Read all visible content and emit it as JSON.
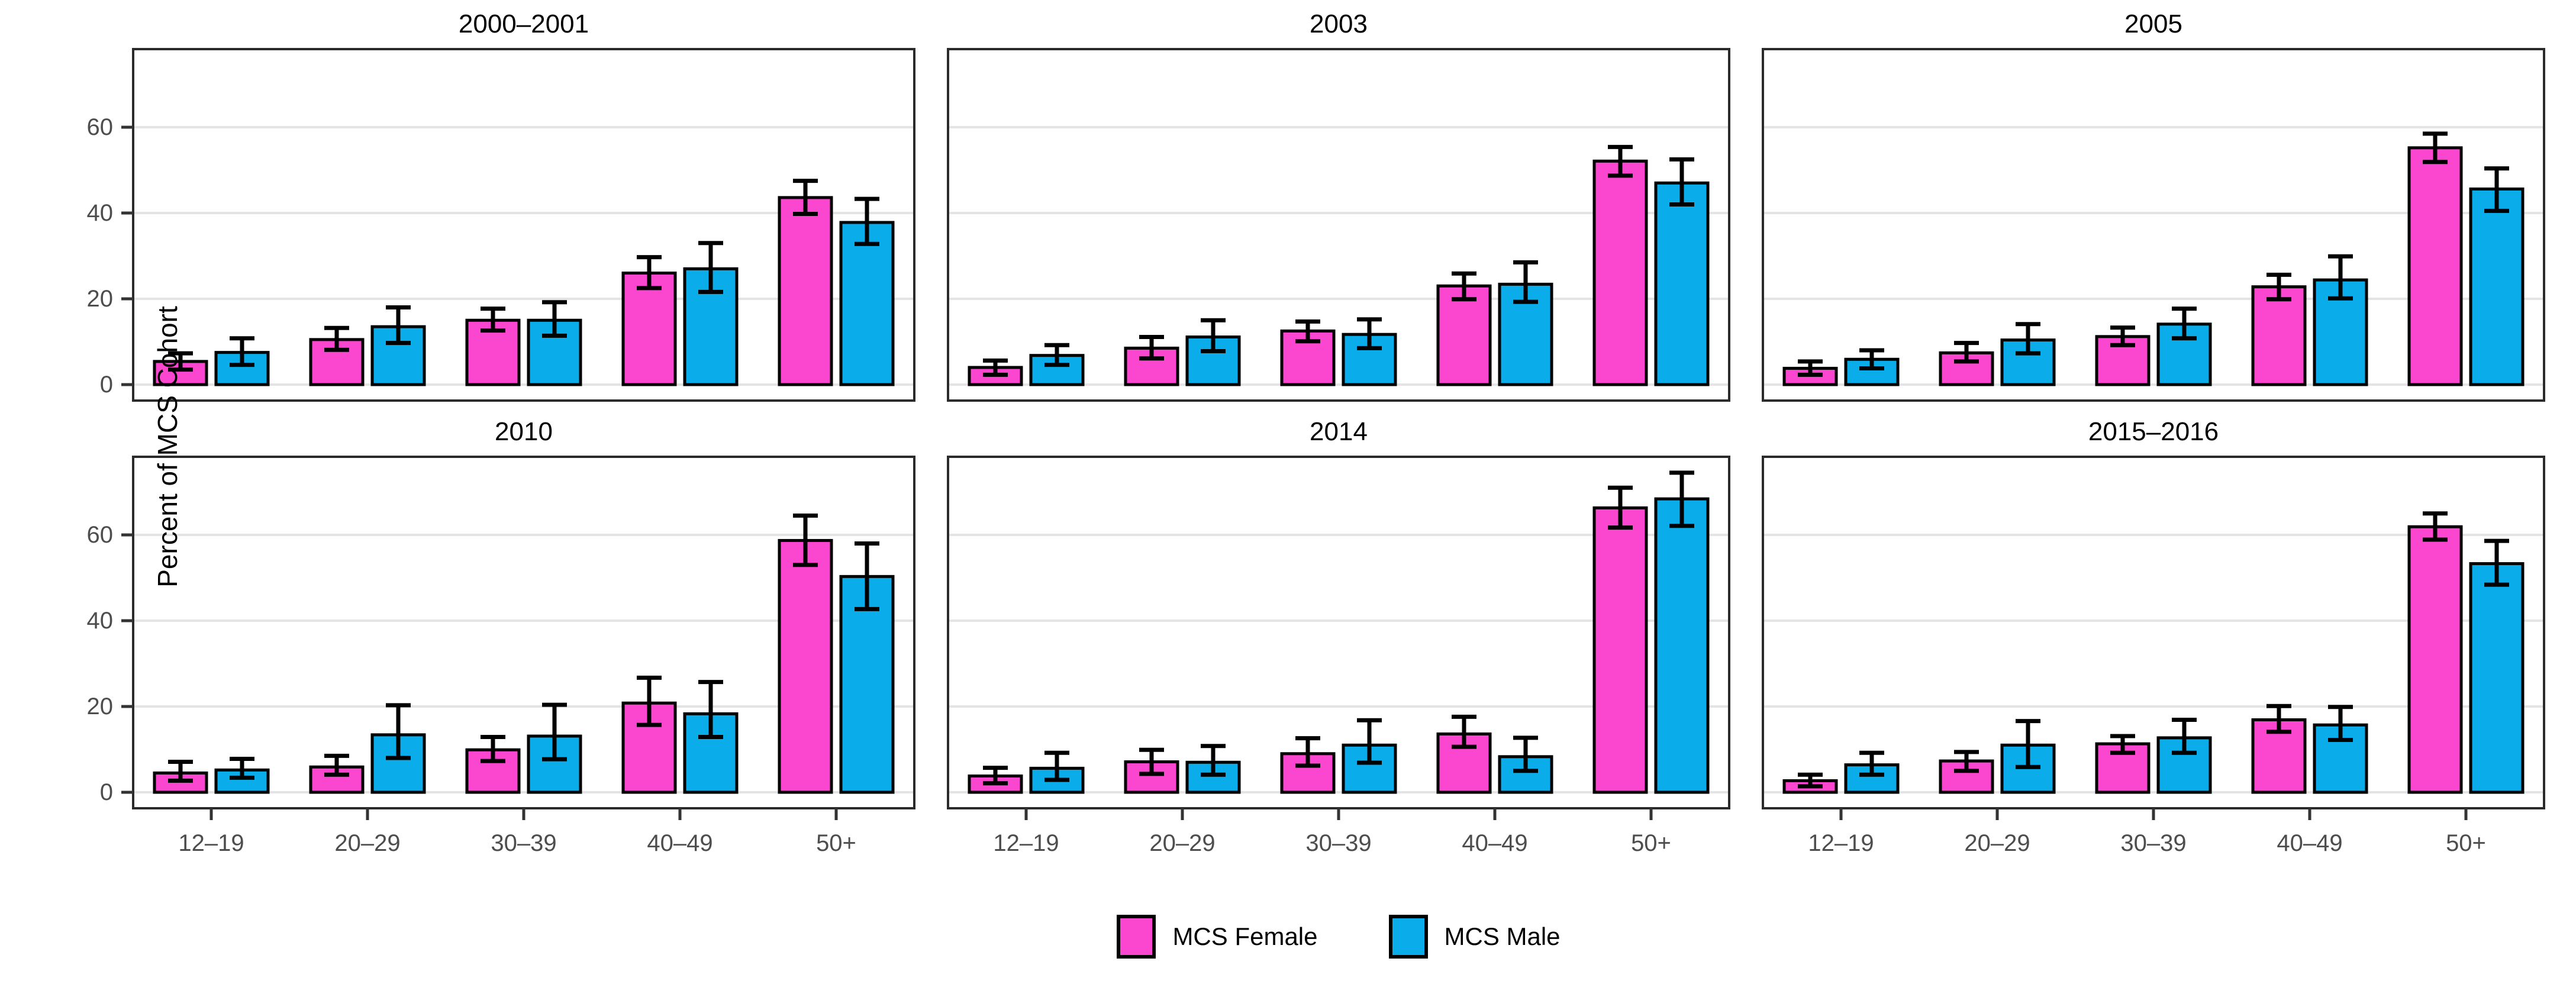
{
  "figure": {
    "y_axis_title": "Percent of MCS Cohort",
    "legend": [
      {
        "label": "MCS Female",
        "color_key": "female"
      },
      {
        "label": "MCS Male",
        "color_key": "male"
      }
    ],
    "colors": {
      "female": "#FB46D0",
      "male": "#0AACEA",
      "grid": "#E4E4E4",
      "panel_border": "#2B2B2B",
      "tick_label": "#4D4D4D",
      "tick_mark": "#333333",
      "bar_outline": "#000000",
      "title_text": "#000000"
    }
  },
  "chart_data": {
    "type": "bar",
    "categories": [
      "12–19",
      "20–29",
      "30–39",
      "40–49",
      "50+"
    ],
    "y_ticks": [
      0,
      20,
      40,
      60
    ],
    "ylim": [
      -3.9,
      78.3
    ],
    "ylabel": "Percent of MCS Cohort",
    "grid": "major-horizontal-only",
    "legend_position": "bottom",
    "series_names": [
      "MCS Female",
      "MCS Male"
    ],
    "panels": [
      {
        "title": "2000–2001",
        "series": [
          {
            "name": "MCS Female",
            "values": [
              5.4,
              10.5,
              15.0,
              26.0,
              43.6
            ],
            "err_low": [
              3.5,
              8.1,
              12.6,
              22.5,
              39.8
            ],
            "err_high": [
              7.3,
              13.2,
              17.7,
              29.7,
              47.5
            ]
          },
          {
            "name": "MCS Male",
            "values": [
              7.5,
              13.5,
              15.0,
              27.0,
              37.8
            ],
            "err_low": [
              4.6,
              9.7,
              11.4,
              21.6,
              32.8
            ],
            "err_high": [
              10.8,
              18.0,
              19.2,
              33.0,
              43.3
            ]
          }
        ]
      },
      {
        "title": "2003",
        "series": [
          {
            "name": "MCS Female",
            "values": [
              4.0,
              8.5,
              12.5,
              23.0,
              52.1
            ],
            "err_low": [
              2.3,
              6.1,
              10.1,
              19.9,
              48.7
            ],
            "err_high": [
              5.6,
              11.1,
              14.7,
              25.9,
              55.4
            ]
          },
          {
            "name": "MCS Male",
            "values": [
              6.8,
              11.1,
              11.7,
              23.4,
              47.0
            ],
            "err_low": [
              4.6,
              7.8,
              8.5,
              19.3,
              42.0
            ],
            "err_high": [
              9.2,
              15.0,
              15.2,
              28.5,
              52.5
            ]
          }
        ]
      },
      {
        "title": "2005",
        "series": [
          {
            "name": "MCS Female",
            "values": [
              3.8,
              7.4,
              11.2,
              22.8,
              55.2
            ],
            "err_low": [
              2.3,
              5.4,
              9.2,
              19.9,
              51.9
            ],
            "err_high": [
              5.4,
              9.7,
              13.3,
              25.6,
              58.5
            ]
          },
          {
            "name": "MCS Male",
            "values": [
              5.9,
              10.4,
              14.1,
              24.4,
              45.6
            ],
            "err_low": [
              3.8,
              7.3,
              10.8,
              20.1,
              40.5
            ],
            "err_high": [
              8.0,
              14.1,
              17.7,
              29.9,
              50.4
            ]
          }
        ]
      },
      {
        "title": "2010",
        "series": [
          {
            "name": "MCS Female",
            "values": [
              4.5,
              5.9,
              9.9,
              20.8,
              58.7
            ],
            "err_low": [
              2.7,
              4.1,
              7.3,
              15.7,
              53.0
            ],
            "err_high": [
              7.1,
              8.5,
              12.9,
              26.7,
              64.5
            ]
          },
          {
            "name": "MCS Male",
            "values": [
              5.2,
              13.4,
              13.1,
              18.3,
              50.3
            ],
            "err_low": [
              3.4,
              8.0,
              7.7,
              12.9,
              42.7
            ],
            "err_high": [
              7.8,
              20.3,
              20.4,
              25.7,
              58.0
            ]
          }
        ]
      },
      {
        "title": "2014",
        "series": [
          {
            "name": "MCS Female",
            "values": [
              3.8,
              7.1,
              9.0,
              13.6,
              66.3
            ],
            "err_low": [
              2.1,
              4.3,
              6.2,
              10.6,
              61.7
            ],
            "err_high": [
              5.7,
              9.9,
              12.6,
              17.6,
              71.0
            ]
          },
          {
            "name": "MCS Male",
            "values": [
              5.6,
              7.0,
              11.0,
              8.3,
              68.4
            ],
            "err_low": [
              2.9,
              4.1,
              6.9,
              5.0,
              62.1
            ],
            "err_high": [
              9.2,
              10.8,
              16.8,
              12.7,
              74.5
            ]
          }
        ]
      },
      {
        "title": "2015–2016",
        "series": [
          {
            "name": "MCS Female",
            "values": [
              2.7,
              7.3,
              11.3,
              16.9,
              61.9
            ],
            "err_low": [
              1.4,
              5.0,
              9.2,
              14.1,
              58.9
            ],
            "err_high": [
              4.1,
              9.4,
              13.1,
              20.1,
              65.0
            ]
          },
          {
            "name": "MCS Male",
            "values": [
              6.4,
              11.0,
              12.7,
              15.7,
              53.3
            ],
            "err_low": [
              4.1,
              5.9,
              9.2,
              12.2,
              48.4
            ],
            "err_high": [
              9.2,
              16.6,
              16.9,
              19.9,
              58.6
            ]
          }
        ]
      }
    ]
  }
}
